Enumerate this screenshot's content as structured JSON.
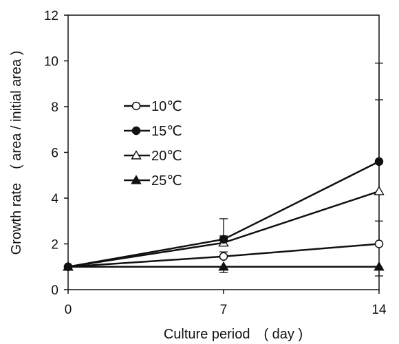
{
  "chart_data": {
    "type": "line",
    "xlabel": "Culture period　( day )",
    "ylabel": "Growth  rate　( area / initial area )",
    "x": [
      0,
      7,
      14
    ],
    "xlim": [
      0,
      14
    ],
    "ylim": [
      0,
      12
    ],
    "x_ticks": [
      "0",
      "7",
      "14"
    ],
    "y_ticks": [
      "0",
      "2",
      "4",
      "6",
      "8",
      "10",
      "12"
    ],
    "grid": false,
    "legend_position": "left",
    "series": [
      {
        "name": "10℃",
        "marker": "circle-open",
        "values": [
          1.0,
          1.45,
          2.0
        ],
        "error": [
          0,
          0.2,
          1.0
        ]
      },
      {
        "name": "15℃",
        "marker": "circle-filled",
        "values": [
          1.0,
          2.2,
          5.6
        ],
        "error": [
          0,
          0.9,
          4.3
        ]
      },
      {
        "name": "20℃",
        "marker": "triangle-open",
        "values": [
          1.0,
          2.05,
          4.3
        ],
        "error": [
          0,
          0.3,
          4.0
        ]
      },
      {
        "name": "25℃",
        "marker": "triangle-filled",
        "values": [
          1.0,
          1.0,
          1.0
        ],
        "error": [
          0,
          0.25,
          0.4
        ]
      }
    ]
  }
}
